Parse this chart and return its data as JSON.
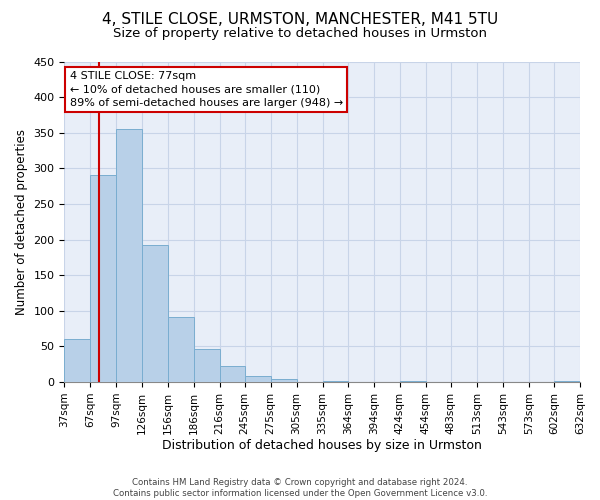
{
  "title": "4, STILE CLOSE, URMSTON, MANCHESTER, M41 5TU",
  "subtitle": "Size of property relative to detached houses in Urmston",
  "xlabel": "Distribution of detached houses by size in Urmston",
  "ylabel": "Number of detached properties",
  "bar_color": "#b8d0e8",
  "bar_edge_color": "#7aadd0",
  "bin_edges": [
    37,
    67,
    97,
    126,
    156,
    186,
    216,
    245,
    275,
    305,
    335,
    364,
    394,
    424,
    454,
    483,
    513,
    543,
    573,
    602,
    632
  ],
  "bin_labels": [
    "37sqm",
    "67sqm",
    "97sqm",
    "126sqm",
    "156sqm",
    "186sqm",
    "216sqm",
    "245sqm",
    "275sqm",
    "305sqm",
    "335sqm",
    "364sqm",
    "394sqm",
    "424sqm",
    "454sqm",
    "483sqm",
    "513sqm",
    "543sqm",
    "573sqm",
    "602sqm",
    "632sqm"
  ],
  "bar_heights": [
    60,
    290,
    355,
    192,
    91,
    46,
    22,
    8,
    5,
    0,
    2,
    0,
    0,
    1,
    0,
    0,
    0,
    0,
    0,
    2
  ],
  "ylim": [
    0,
    450
  ],
  "yticks": [
    0,
    50,
    100,
    150,
    200,
    250,
    300,
    350,
    400,
    450
  ],
  "property_size": 77,
  "red_line_color": "#cc0000",
  "annotation_line1": "4 STILE CLOSE: 77sqm",
  "annotation_line2": "← 10% of detached houses are smaller (110)",
  "annotation_line3": "89% of semi-detached houses are larger (948) →",
  "annotation_box_color": "#ffffff",
  "annotation_box_edge_color": "#cc0000",
  "footer_line1": "Contains HM Land Registry data © Crown copyright and database right 2024.",
  "footer_line2": "Contains public sector information licensed under the Open Government Licence v3.0.",
  "background_color": "#ffffff",
  "plot_bg_color": "#e8eef8",
  "grid_color": "#c8d4e8",
  "title_fontsize": 11,
  "subtitle_fontsize": 9.5,
  "tick_label_fontsize": 7.5,
  "ylabel_fontsize": 8.5,
  "xlabel_fontsize": 9
}
